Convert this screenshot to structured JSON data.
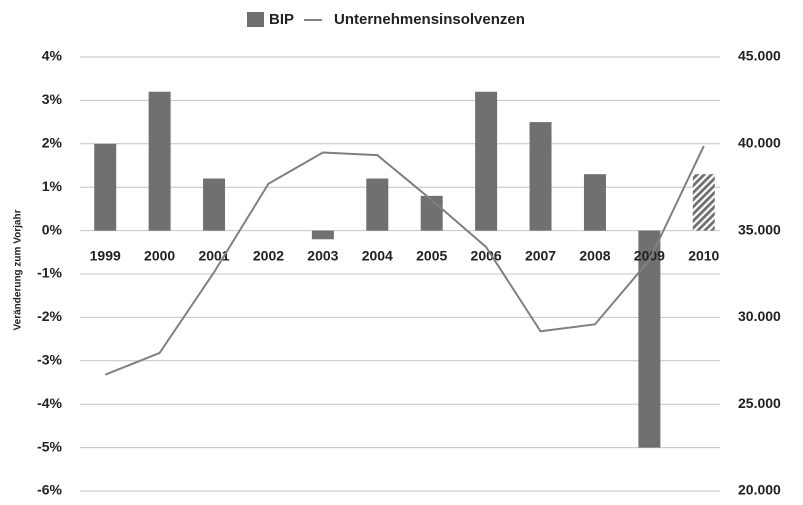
{
  "chart_data": {
    "type": "bar_line",
    "categories": [
      "1999",
      "2000",
      "2001",
      "2002",
      "2003",
      "2004",
      "2005",
      "2006",
      "2007",
      "2008",
      "2009",
      "2010"
    ],
    "series": [
      {
        "name": "BIP",
        "type": "bar",
        "color": "#707070",
        "values": [
          2.0,
          3.2,
          1.2,
          0,
          -0.2,
          1.2,
          0.8,
          3.2,
          2.5,
          1.3,
          -5.0,
          1.3
        ],
        "hatched": [
          false,
          false,
          false,
          false,
          false,
          false,
          false,
          false,
          false,
          false,
          false,
          true
        ]
      },
      {
        "name": "Unternehmensinsolvenzen",
        "type": "line",
        "color": "#808080",
        "axis": "y2",
        "values": [
          26700,
          27950,
          32600,
          37700,
          39500,
          39350,
          36760,
          34050,
          29200,
          29600,
          33300,
          39870
        ]
      }
    ],
    "ylabel": "Veränderung zum Vorjahr",
    "ylim": [
      -6,
      4
    ],
    "yticks": [
      {
        "value": 4,
        "label": "4%"
      },
      {
        "value": 3,
        "label": "3%"
      },
      {
        "value": 2,
        "label": "2%"
      },
      {
        "value": 1,
        "label": "1%"
      },
      {
        "value": 0,
        "label": "0%"
      },
      {
        "value": -1,
        "label": "-1%"
      },
      {
        "value": -2,
        "label": "-2%"
      },
      {
        "value": -3,
        "label": "-3%"
      },
      {
        "value": -4,
        "label": "-4%"
      },
      {
        "value": -5,
        "label": "-5%"
      },
      {
        "value": -6,
        "label": "-6%"
      }
    ],
    "y2lim": [
      20000,
      45000
    ],
    "y2ticks": [
      {
        "value": 45000,
        "label": "45.000"
      },
      {
        "value": 40000,
        "label": "40.000"
      },
      {
        "value": 35000,
        "label": "35.000"
      },
      {
        "value": 30000,
        "label": "30.000"
      },
      {
        "value": 25000,
        "label": "25.000"
      },
      {
        "value": 20000,
        "label": "20.000"
      }
    ],
    "grid": true,
    "legend": "top"
  }
}
